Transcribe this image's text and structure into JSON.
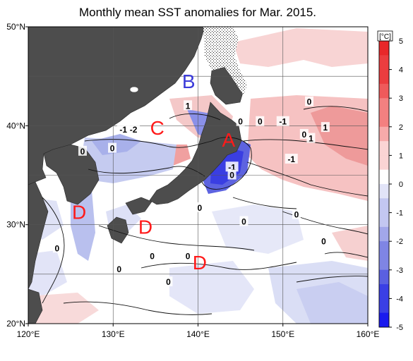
{
  "title": "Monthly mean SST anomalies for Mar. 2015.",
  "axes": {
    "x_ticks": [
      {
        "value": 120,
        "label": "120°E"
      },
      {
        "value": 130,
        "label": "130°E"
      },
      {
        "value": 140,
        "label": "140°E"
      },
      {
        "value": 150,
        "label": "150°E"
      },
      {
        "value": 160,
        "label": "160°E"
      }
    ],
    "y_ticks": [
      {
        "value": 20,
        "label": "20°N"
      },
      {
        "value": 30,
        "label": "30°N"
      },
      {
        "value": 40,
        "label": "40°N"
      },
      {
        "value": 50,
        "label": "50°N"
      }
    ],
    "lon_range": [
      120,
      160
    ],
    "lat_range": [
      20,
      50
    ],
    "grid": true
  },
  "colorbar": {
    "unit": "[°C]",
    "range": [
      -5,
      5
    ],
    "ticks": [
      5,
      4,
      3,
      2,
      1,
      0,
      -1,
      -2,
      -3,
      -4,
      -5
    ],
    "warm_color": "#e8282a",
    "cold_color": "#1a1aee"
  },
  "region_labels": [
    {
      "text": "A",
      "lon": 143.6,
      "lat": 38.6,
      "color": "#ff1a1a"
    },
    {
      "text": "B",
      "lon": 138.9,
      "lat": 44.5,
      "color": "#3b3bd9"
    },
    {
      "text": "C",
      "lon": 135.2,
      "lat": 39.8,
      "color": "#ff1a1a"
    },
    {
      "text": "D",
      "lon": 126.0,
      "lat": 31.3,
      "color": "#ff1a1a"
    },
    {
      "text": "D",
      "lon": 133.8,
      "lat": 29.8,
      "color": "#ff1a1a"
    },
    {
      "text": "D",
      "lon": 140.2,
      "lat": 26.2,
      "color": "#ff1a1a"
    }
  ],
  "contour_labels": [
    {
      "text": "1",
      "lon": 138.8,
      "lat": 42.0
    },
    {
      "text": "-1",
      "lon": 131.2,
      "lat": 39.6
    },
    {
      "text": "-2",
      "lon": 132.4,
      "lat": 39.6
    },
    {
      "text": "0",
      "lon": 129.9,
      "lat": 37.7
    },
    {
      "text": "0",
      "lon": 126.4,
      "lat": 37.4
    },
    {
      "text": "0",
      "lon": 145.0,
      "lat": 40.4
    },
    {
      "text": "-1",
      "lon": 150.0,
      "lat": 40.4
    },
    {
      "text": "0",
      "lon": 147.3,
      "lat": 40.4
    },
    {
      "text": "0",
      "lon": 153.1,
      "lat": 42.4
    },
    {
      "text": "1",
      "lon": 155.0,
      "lat": 39.8
    },
    {
      "text": "0",
      "lon": 152.5,
      "lat": 39.1
    },
    {
      "text": "1",
      "lon": 153.3,
      "lat": 38.7
    },
    {
      "text": "-1",
      "lon": 151.0,
      "lat": 36.6
    },
    {
      "text": "-1",
      "lon": 144.0,
      "lat": 35.8
    },
    {
      "text": "0",
      "lon": 144.0,
      "lat": 35.0
    },
    {
      "text": "0",
      "lon": 140.2,
      "lat": 31.7
    },
    {
      "text": "0",
      "lon": 145.4,
      "lat": 30.3
    },
    {
      "text": "0",
      "lon": 151.6,
      "lat": 31.0
    },
    {
      "text": "0",
      "lon": 154.8,
      "lat": 28.3
    },
    {
      "text": "0",
      "lon": 123.4,
      "lat": 27.6
    },
    {
      "text": "0",
      "lon": 134.6,
      "lat": 26.8
    },
    {
      "text": "0",
      "lon": 138.8,
      "lat": 26.8
    },
    {
      "text": "0",
      "lon": 130.7,
      "lat": 25.5
    },
    {
      "text": "0",
      "lon": 136.5,
      "lat": 24.2
    }
  ]
}
